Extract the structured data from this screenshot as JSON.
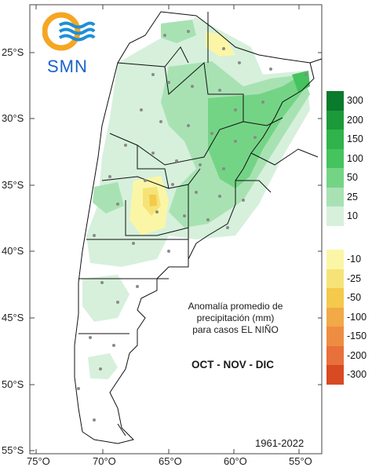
{
  "map": {
    "latitude_labels": [
      "25°S",
      "30°S",
      "35°S",
      "40°S",
      "45°S",
      "50°S",
      "55°S"
    ],
    "longitude_labels": [
      "75°O",
      "70°O",
      "65°O",
      "60°O",
      "55°O"
    ],
    "caption_lines": [
      "Anomalía promedio de",
      "precipitación (mm)",
      "para casos EL NIÑO"
    ],
    "season": "OCT - NOV - DIC",
    "period": "1961-2022"
  },
  "logo": {
    "text": "SMN",
    "colors": {
      "sun": "#f5a623",
      "waves": "#1e8fd6",
      "text": "#1a62c9"
    }
  },
  "legend": {
    "positive": [
      {
        "label": "300",
        "color": "#0a7a2c"
      },
      {
        "label": "200",
        "color": "#1c9a3a"
      },
      {
        "label": "150",
        "color": "#2fb34a"
      },
      {
        "label": "100",
        "color": "#45c35e"
      },
      {
        "label": "50",
        "color": "#74d485"
      },
      {
        "label": "25",
        "color": "#a8e2b3"
      },
      {
        "label": "10",
        "color": "#d6f0dc"
      }
    ],
    "negative": [
      {
        "label": "-10",
        "color": "#fbf6a6"
      },
      {
        "label": "-25",
        "color": "#f6e377"
      },
      {
        "label": "-50",
        "color": "#f4c94c"
      },
      {
        "label": "-100",
        "color": "#f2a947"
      },
      {
        "label": "-150",
        "color": "#ee8d42"
      },
      {
        "label": "-200",
        "color": "#e8703a"
      },
      {
        "label": "-300",
        "color": "#d84a22"
      }
    ]
  },
  "colors": {
    "background": "#ffffff",
    "frame": "#444444",
    "boundaries": "#111111",
    "stations": "#8a8a8a"
  }
}
